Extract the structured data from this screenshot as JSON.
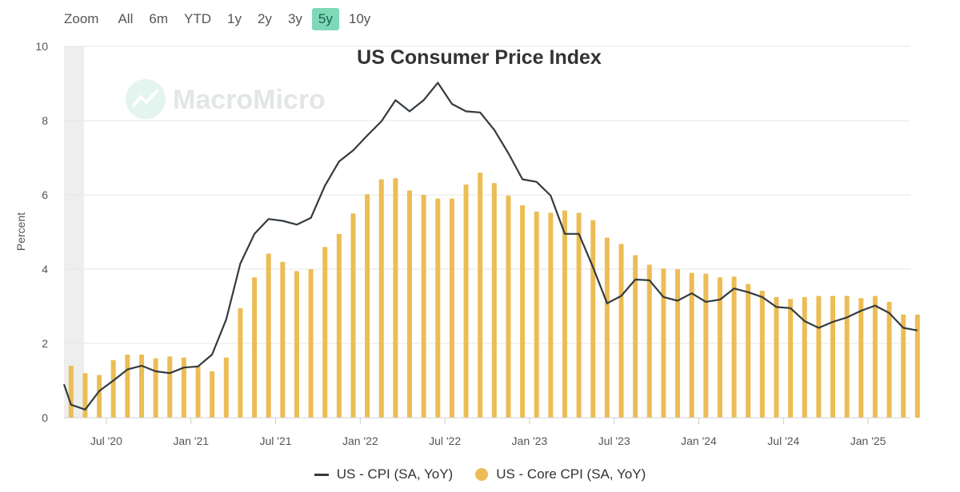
{
  "zoom": {
    "label": "Zoom",
    "buttons": [
      "All",
      "6m",
      "YTD",
      "1y",
      "2y",
      "3y",
      "5y",
      "10y"
    ],
    "active": "5y"
  },
  "watermark": "MacroMicro",
  "colors": {
    "line": "#333b40",
    "bar": "#ecbd55",
    "zoom_active": "#7ed9b8",
    "grid": "#e6e6e6",
    "shade": "#eeeeee"
  },
  "chart_data": {
    "type": "bar",
    "title": "US Consumer Price Index",
    "ylabel": "Percent",
    "xlabel": "",
    "ylim": [
      0,
      10
    ],
    "yticks": [
      0,
      2,
      4,
      6,
      8,
      10
    ],
    "grid": true,
    "legend_position": "bottom-center",
    "x_start": "2020-04",
    "x_end": "2025-04",
    "xticks": [
      "Jul '20",
      "Jan '21",
      "Jul '21",
      "Jan '22",
      "Jul '22",
      "Jan '23",
      "Jul '23",
      "Jan '24",
      "Jul '24",
      "Jan '25"
    ],
    "x": [
      "2020-04",
      "2020-05",
      "2020-06",
      "2020-07",
      "2020-08",
      "2020-09",
      "2020-10",
      "2020-11",
      "2020-12",
      "2021-01",
      "2021-02",
      "2021-03",
      "2021-04",
      "2021-05",
      "2021-06",
      "2021-07",
      "2021-08",
      "2021-09",
      "2021-10",
      "2021-11",
      "2021-12",
      "2022-01",
      "2022-02",
      "2022-03",
      "2022-04",
      "2022-05",
      "2022-06",
      "2022-07",
      "2022-08",
      "2022-09",
      "2022-10",
      "2022-11",
      "2022-12",
      "2023-01",
      "2023-02",
      "2023-03",
      "2023-04",
      "2023-05",
      "2023-06",
      "2023-07",
      "2023-08",
      "2023-09",
      "2023-10",
      "2023-11",
      "2023-12",
      "2024-01",
      "2024-02",
      "2024-03",
      "2024-04",
      "2024-05",
      "2024-06",
      "2024-07",
      "2024-08",
      "2024-09",
      "2024-10",
      "2024-11",
      "2024-12",
      "2025-01",
      "2025-02",
      "2025-03",
      "2025-04"
    ],
    "series": [
      {
        "name": "US - CPI (SA, YoY)",
        "type": "line",
        "values": [
          0.35,
          0.22,
          0.72,
          1.0,
          1.3,
          1.4,
          1.25,
          1.2,
          1.35,
          1.38,
          1.7,
          2.65,
          4.15,
          4.95,
          5.35,
          5.3,
          5.2,
          5.38,
          6.25,
          6.9,
          7.2,
          7.6,
          7.98,
          8.55,
          8.25,
          8.55,
          9.02,
          8.45,
          8.25,
          8.22,
          7.75,
          7.12,
          6.42,
          6.35,
          5.98,
          4.95,
          4.95,
          4.05,
          3.08,
          3.28,
          3.72,
          3.7,
          3.25,
          3.15,
          3.35,
          3.12,
          3.18,
          3.48,
          3.38,
          3.25,
          2.98,
          2.95,
          2.6,
          2.42,
          2.58,
          2.7,
          2.88,
          3.02,
          2.82,
          2.42,
          2.35
        ]
      },
      {
        "name": "US - Core CPI (SA, YoY)",
        "type": "bar",
        "values": [
          1.4,
          1.2,
          1.15,
          1.55,
          1.7,
          1.7,
          1.6,
          1.65,
          1.62,
          1.4,
          1.25,
          1.62,
          2.95,
          3.78,
          4.42,
          4.2,
          3.95,
          4.0,
          4.6,
          4.95,
          5.5,
          6.02,
          6.42,
          6.45,
          6.12,
          6.0,
          5.9,
          5.9,
          6.28,
          6.6,
          6.32,
          5.98,
          5.72,
          5.55,
          5.52,
          5.58,
          5.52,
          5.32,
          4.85,
          4.68,
          4.38,
          4.12,
          4.02,
          4.0,
          3.9,
          3.88,
          3.78,
          3.8,
          3.6,
          3.42,
          3.25,
          3.2,
          3.25,
          3.28,
          3.28,
          3.28,
          3.22,
          3.28,
          3.12,
          2.78,
          2.78
        ]
      }
    ]
  }
}
